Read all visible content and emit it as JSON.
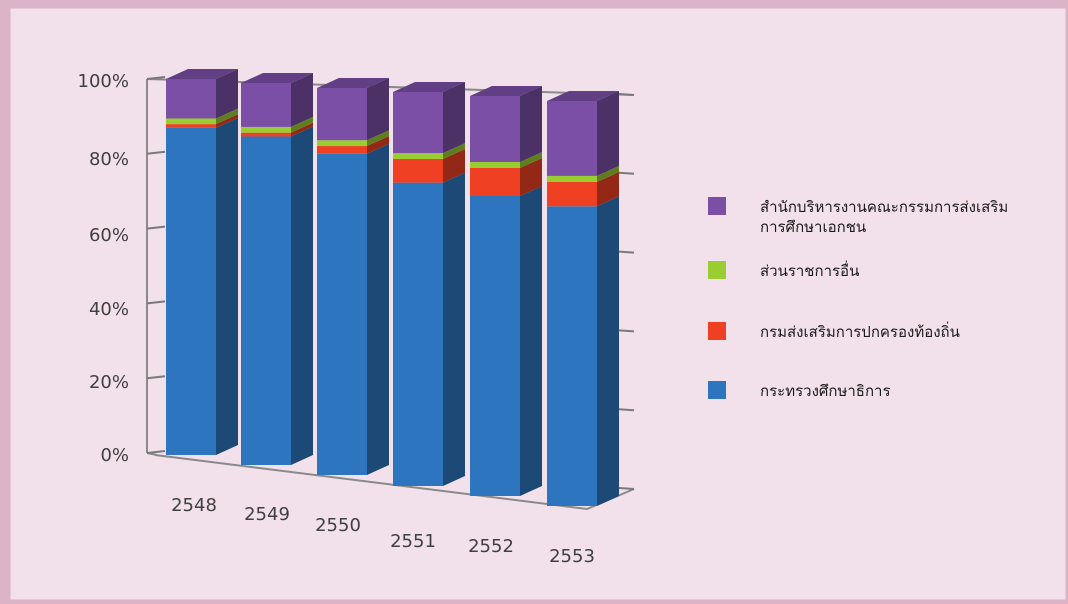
{
  "chart_data": {
    "type": "bar",
    "stacked": true,
    "percent": true,
    "three_d": true,
    "categories": [
      "2548",
      "2549",
      "2550",
      "2551",
      "2552",
      "2553"
    ],
    "series": [
      {
        "name": "กระทรวงศึกษาธิการ",
        "color": "#2e75bf",
        "values": [
          87,
          86,
          83,
          77,
          75,
          74
        ]
      },
      {
        "name": "กรมส่งเสริมการปกครองท้องถิ่น",
        "color": "#ef4023",
        "values": [
          1,
          1,
          2,
          6,
          7,
          6
        ]
      },
      {
        "name": "ส่วนราชการอื่น",
        "color": "#9acd32",
        "values": [
          1.5,
          1.5,
          1.5,
          1.5,
          1.5,
          1.5
        ]
      },
      {
        "name": "สำนักบริหารงานคณะกรรมการส่งเสริมการศึกษาเอกชน",
        "name_lines": [
          "สำนักบริหารงานคณะกรรมการส่งเสริม",
          "การศึกษาเอกชน"
        ],
        "color": "#7b4fa6",
        "values": [
          10.5,
          11.5,
          13.5,
          15.5,
          16.5,
          18.5
        ]
      }
    ],
    "y_ticks": [
      "0%",
      "20%",
      "40%",
      "60%",
      "80%",
      "100%"
    ],
    "ylim": [
      0,
      100
    ],
    "grid": true,
    "legend_position": "right"
  }
}
